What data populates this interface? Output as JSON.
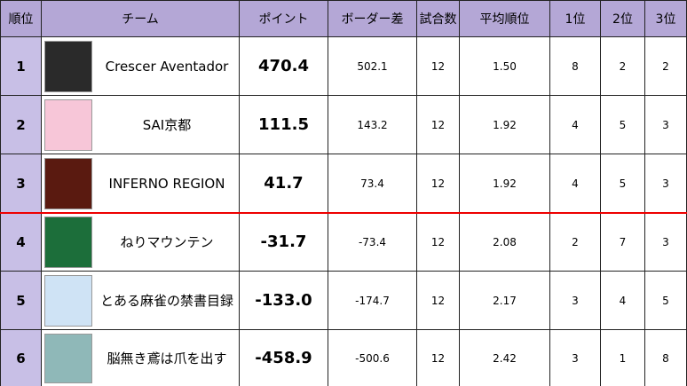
{
  "table": {
    "header": [
      "順位",
      "チーム",
      "ポイント",
      "ボーダー差",
      "試合数",
      "平均順位",
      "1位",
      "2位",
      "3位"
    ],
    "rows": [
      [
        "1",
        "Crescer Aventador",
        "470.4",
        "502.1",
        "12",
        "1.50",
        "8",
        "2",
        "2"
      ],
      [
        "2",
        "SAI京都",
        "111.5",
        "143.2",
        "12",
        "1.92",
        "4",
        "5",
        "3"
      ],
      [
        "3",
        "INFERNO REGION",
        "41.7",
        "73.4",
        "12",
        "1.92",
        "4",
        "5",
        "3"
      ],
      [
        "4",
        "ねりマウンテン",
        "-31.7",
        "-73.4",
        "12",
        "2.08",
        "2",
        "7",
        "3"
      ],
      [
        "5",
        "とある麻雀の禁書目録",
        "-133.0",
        "-174.7",
        "12",
        "2.17",
        "3",
        "4",
        "5"
      ],
      [
        "6",
        "脳無き鳶は爪を出す",
        "-458.9",
        "-500.6",
        "12",
        "2.42",
        "3",
        "1",
        "8"
      ]
    ]
  }
}
